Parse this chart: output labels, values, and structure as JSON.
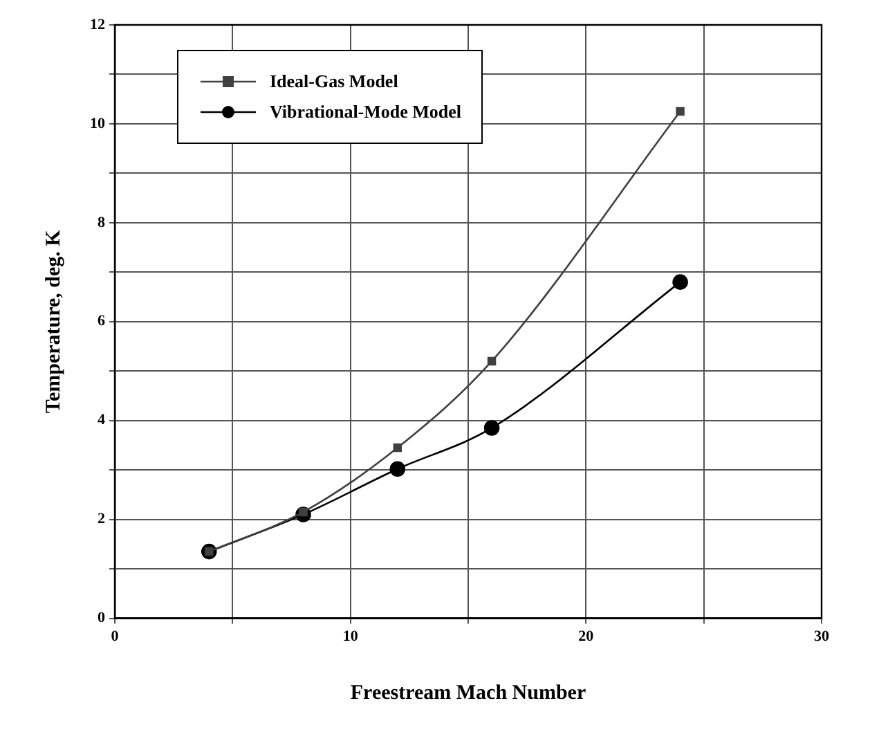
{
  "chart_data": {
    "type": "line",
    "xlabel": "Freestream Mach Number",
    "ylabel": "Temperature, deg. K",
    "xlim": [
      0,
      30
    ],
    "xticks": [
      0,
      {
        "value": 5,
        "label": null
      },
      10,
      {
        "value": 15,
        "label": null
      },
      20,
      {
        "value": 25,
        "label": null
      },
      30
    ],
    "ylim": [
      0,
      12
    ],
    "yticks": [
      0,
      {
        "value": 1,
        "label": null
      },
      2,
      {
        "value": 3,
        "label": null
      },
      4,
      {
        "value": 5,
        "label": null
      },
      6,
      {
        "value": 7,
        "label": null
      },
      8,
      {
        "value": 9,
        "label": null
      },
      10,
      {
        "value": 11,
        "label": null
      },
      12
    ],
    "grid": true,
    "legend": "top left",
    "series": [
      {
        "name": "Ideal-Gas Model",
        "color": "#404040",
        "marker": "square",
        "x": [
          4,
          8,
          12,
          16,
          24
        ],
        "values": [
          1.35,
          2.15,
          3.45,
          5.2,
          10.25
        ]
      },
      {
        "name": "Vibrational-Mode Model",
        "color": "#000000",
        "marker": "circle",
        "x": [
          4,
          8,
          12,
          16,
          24
        ],
        "values": [
          1.35,
          2.1,
          3.02,
          3.85,
          6.8
        ]
      }
    ]
  }
}
